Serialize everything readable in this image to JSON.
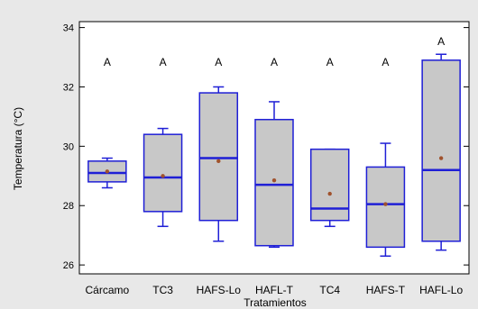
{
  "chart_data": {
    "type": "box",
    "title": "",
    "xlabel": "Tratamientos",
    "ylabel": "Temperatura (°C)",
    "ylim": [
      25.7,
      34.2
    ],
    "yticks": [
      26,
      28,
      30,
      32,
      34
    ],
    "grid": false,
    "legend": "none",
    "categories": [
      "Cárcamo",
      "TC3",
      "HAFS-Lo",
      "HAFL-T",
      "TC4",
      "HAFS-T",
      "HAFL-Lo"
    ],
    "group_letters": [
      "A",
      "A",
      "A",
      "A",
      "A",
      "A",
      "A"
    ],
    "boxes": [
      {
        "min": 28.6,
        "q1": 28.8,
        "median": 29.1,
        "q3": 29.5,
        "max": 29.6,
        "mean": 29.15
      },
      {
        "min": 27.3,
        "q1": 27.8,
        "median": 28.95,
        "q3": 30.4,
        "max": 30.6,
        "mean": 29.0
      },
      {
        "min": 26.8,
        "q1": 27.5,
        "median": 29.6,
        "q3": 31.8,
        "max": 32.0,
        "mean": 29.5
      },
      {
        "min": 26.6,
        "q1": 26.65,
        "median": 28.7,
        "q3": 30.9,
        "max": 31.5,
        "mean": 28.85
      },
      {
        "min": 27.3,
        "q1": 27.5,
        "median": 27.9,
        "q3": 29.9,
        "max": 29.9,
        "mean": 28.4
      },
      {
        "min": 26.3,
        "q1": 26.6,
        "median": 28.05,
        "q3": 29.3,
        "max": 30.1,
        "mean": 28.05
      },
      {
        "min": 26.5,
        "q1": 26.8,
        "median": 29.2,
        "q3": 32.9,
        "max": 33.1,
        "mean": 29.6
      }
    ]
  },
  "colors": {
    "box_fill": "#c8c8c8",
    "box_stroke": "#1f1fd6",
    "mean_marker": "#a0522d",
    "background": "#e8e8e8",
    "plot_background": "#ffffff"
  }
}
